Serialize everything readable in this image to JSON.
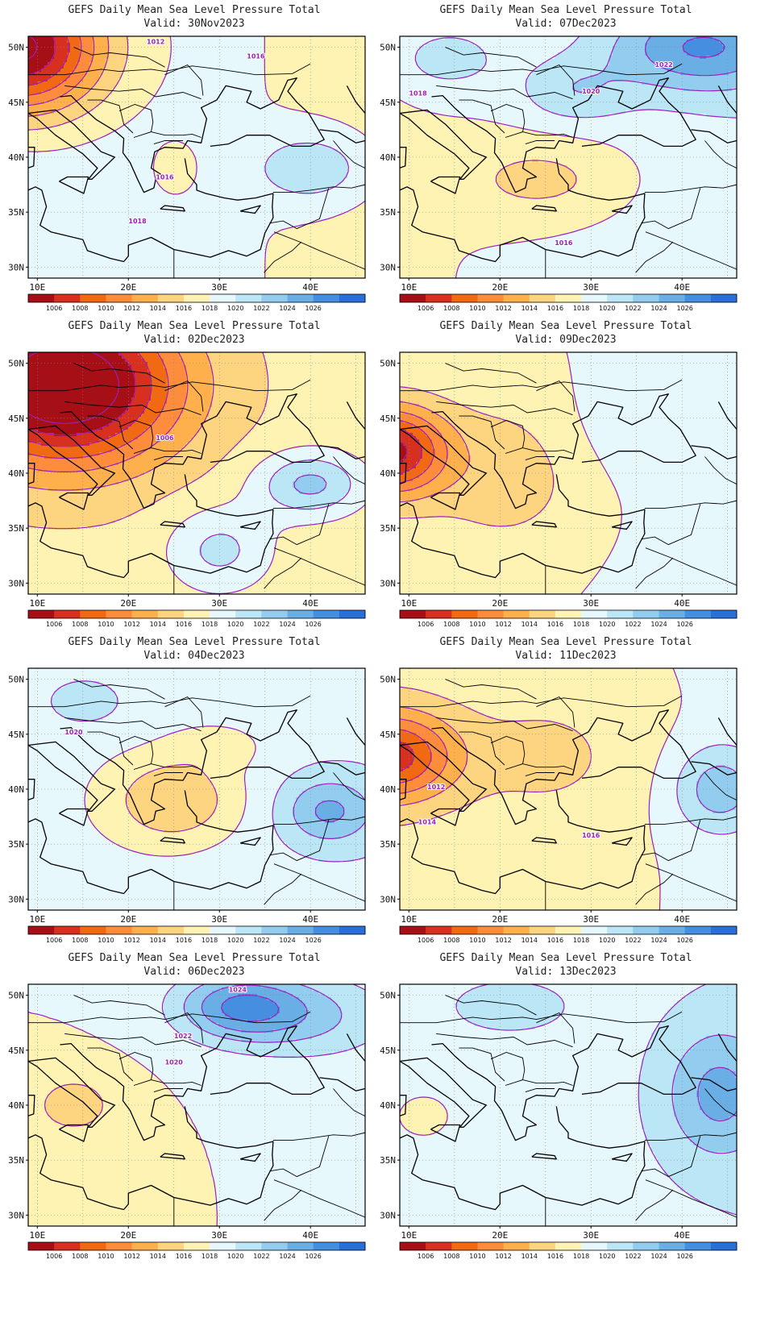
{
  "figure": {
    "panels": [
      {
        "title": "GEFS Daily Mean Sea Level Pressure Total",
        "valid": "Valid: 30Nov2023",
        "regime": "low_nw"
      },
      {
        "title": "GEFS Daily Mean Sea Level Pressure Total",
        "valid": "Valid: 07Dec2023",
        "regime": "high_ne"
      },
      {
        "title": "GEFS Daily Mean Sea Level Pressure Total",
        "valid": "Valid: 02Dec2023",
        "regime": "deep_low_nw"
      },
      {
        "title": "GEFS Daily Mean Sea Level Pressure Total",
        "valid": "Valid: 09Dec2023",
        "regime": "low_west"
      },
      {
        "title": "GEFS Daily Mean Sea Level Pressure Total",
        "valid": "Valid: 04Dec2023",
        "regime": "ridge_center"
      },
      {
        "title": "GEFS Daily Mean Sea Level Pressure Total",
        "valid": "Valid: 11Dec2023",
        "regime": "low_west2"
      },
      {
        "title": "GEFS Daily Mean Sea Level Pressure Total",
        "valid": "Valid: 06Dec2023",
        "regime": "high_north"
      },
      {
        "title": "GEFS Daily Mean Sea Level Pressure Total",
        "valid": "Valid: 13Dec2023",
        "regime": "high_uniform"
      }
    ],
    "lat_labels": [
      "50N",
      "45N",
      "40N",
      "35N",
      "30N"
    ],
    "lon_labels": [
      "10E",
      "20E",
      "30E",
      "40E"
    ],
    "colorbar_labels": [
      "1006",
      "1008",
      "1010",
      "1012",
      "1014",
      "1016",
      "1018",
      "1020",
      "1022",
      "1024",
      "1026"
    ],
    "colorbar_colors": [
      "#a50f15",
      "#d7301f",
      "#f16913",
      "#fd8d3c",
      "#fdb04b",
      "#fdd580",
      "#fff3b3",
      "#e6f8fc",
      "#bbe6f5",
      "#92cdf0",
      "#6aaee6",
      "#468fe0",
      "#2a6fd8"
    ],
    "contour_color": "#9b1fbd",
    "contour_labels": [
      {
        "panel": 0,
        "text": "1012"
      },
      {
        "panel": 0,
        "text": "1016"
      },
      {
        "panel": 0,
        "text": "1016"
      },
      {
        "panel": 0,
        "text": "1018"
      },
      {
        "panel": 1,
        "text": "1022"
      },
      {
        "panel": 1,
        "text": "1018"
      },
      {
        "panel": 1,
        "text": "1020"
      },
      {
        "panel": 1,
        "text": "1016"
      },
      {
        "panel": 2,
        "text": "1006"
      },
      {
        "panel": 4,
        "text": "1020"
      },
      {
        "panel": 5,
        "text": "1012"
      },
      {
        "panel": 5,
        "text": "1014"
      },
      {
        "panel": 5,
        "text": "1016"
      },
      {
        "panel": 6,
        "text": "1024"
      },
      {
        "panel": 6,
        "text": "1022"
      },
      {
        "panel": 6,
        "text": "1020"
      }
    ]
  }
}
